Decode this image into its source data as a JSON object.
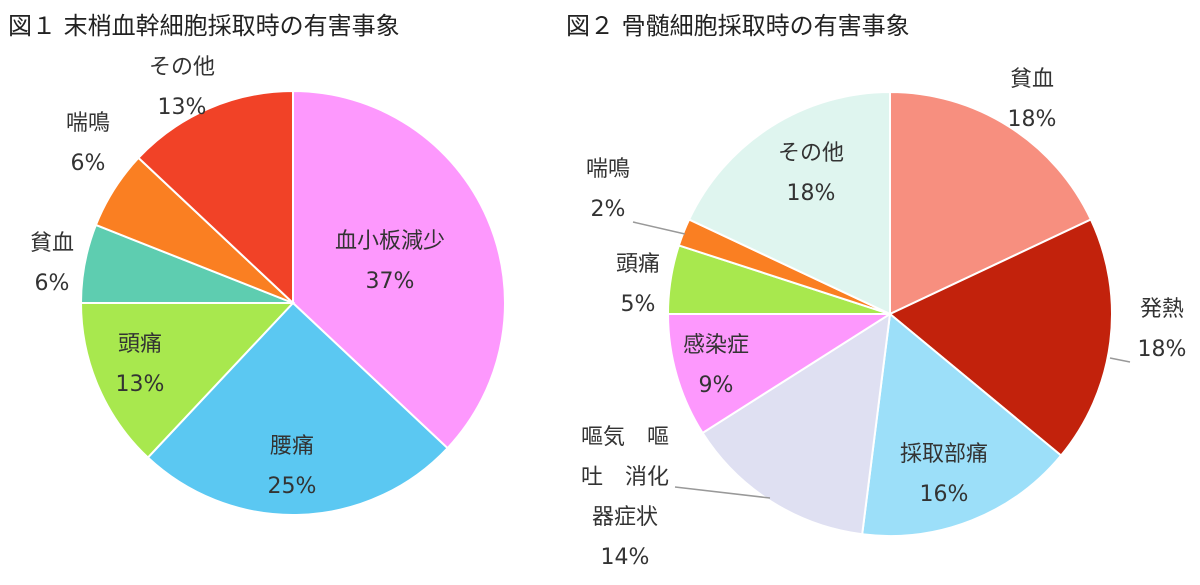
{
  "chart_data": [
    {
      "type": "pie",
      "title": "図１ 末梢血幹細胞採取時の有害事象",
      "slices": [
        {
          "label": "血小板減少",
          "value": 37,
          "pct": "37%",
          "color": "#fd98fd"
        },
        {
          "label": "腰痛",
          "value": 25,
          "pct": "25%",
          "color": "#5bc8f2"
        },
        {
          "label": "頭痛",
          "value": 13,
          "pct": "13%",
          "color": "#a8e84e"
        },
        {
          "label": "貧血",
          "value": 6,
          "pct": "6%",
          "color": "#5ecdb0"
        },
        {
          "label": "喘鳴",
          "value": 6,
          "pct": "6%",
          "color": "#fa7f22"
        },
        {
          "label": "その他",
          "value": 13,
          "pct": "13%",
          "color": "#f14227"
        }
      ]
    },
    {
      "type": "pie",
      "title": "図２ 骨髄細胞採取時の有害事象",
      "slices": [
        {
          "label": "貧血",
          "value": 18,
          "pct": "18%",
          "color": "#f78f7f"
        },
        {
          "label": "発熱",
          "value": 18,
          "pct": "18%",
          "color": "#c2220c"
        },
        {
          "label": "採取部痛",
          "value": 16,
          "pct": "16%",
          "color": "#9cdff9"
        },
        {
          "label": "嘔気 嘔吐 消化器症状",
          "label_lines": [
            "嘔気　嘔",
            "吐　消化",
            "器症状"
          ],
          "value": 14,
          "pct": "14%",
          "color": "#dfe0f2"
        },
        {
          "label": "感染症",
          "value": 9,
          "pct": "9%",
          "color": "#fd98fd"
        },
        {
          "label": "頭痛",
          "value": 5,
          "pct": "5%",
          "color": "#a8e84e"
        },
        {
          "label": "喘鳴",
          "value": 2,
          "pct": "2%",
          "color": "#fa7f22"
        },
        {
          "label": "その他",
          "value": 18,
          "pct": "18%",
          "color": "#dff5ef"
        }
      ]
    }
  ]
}
